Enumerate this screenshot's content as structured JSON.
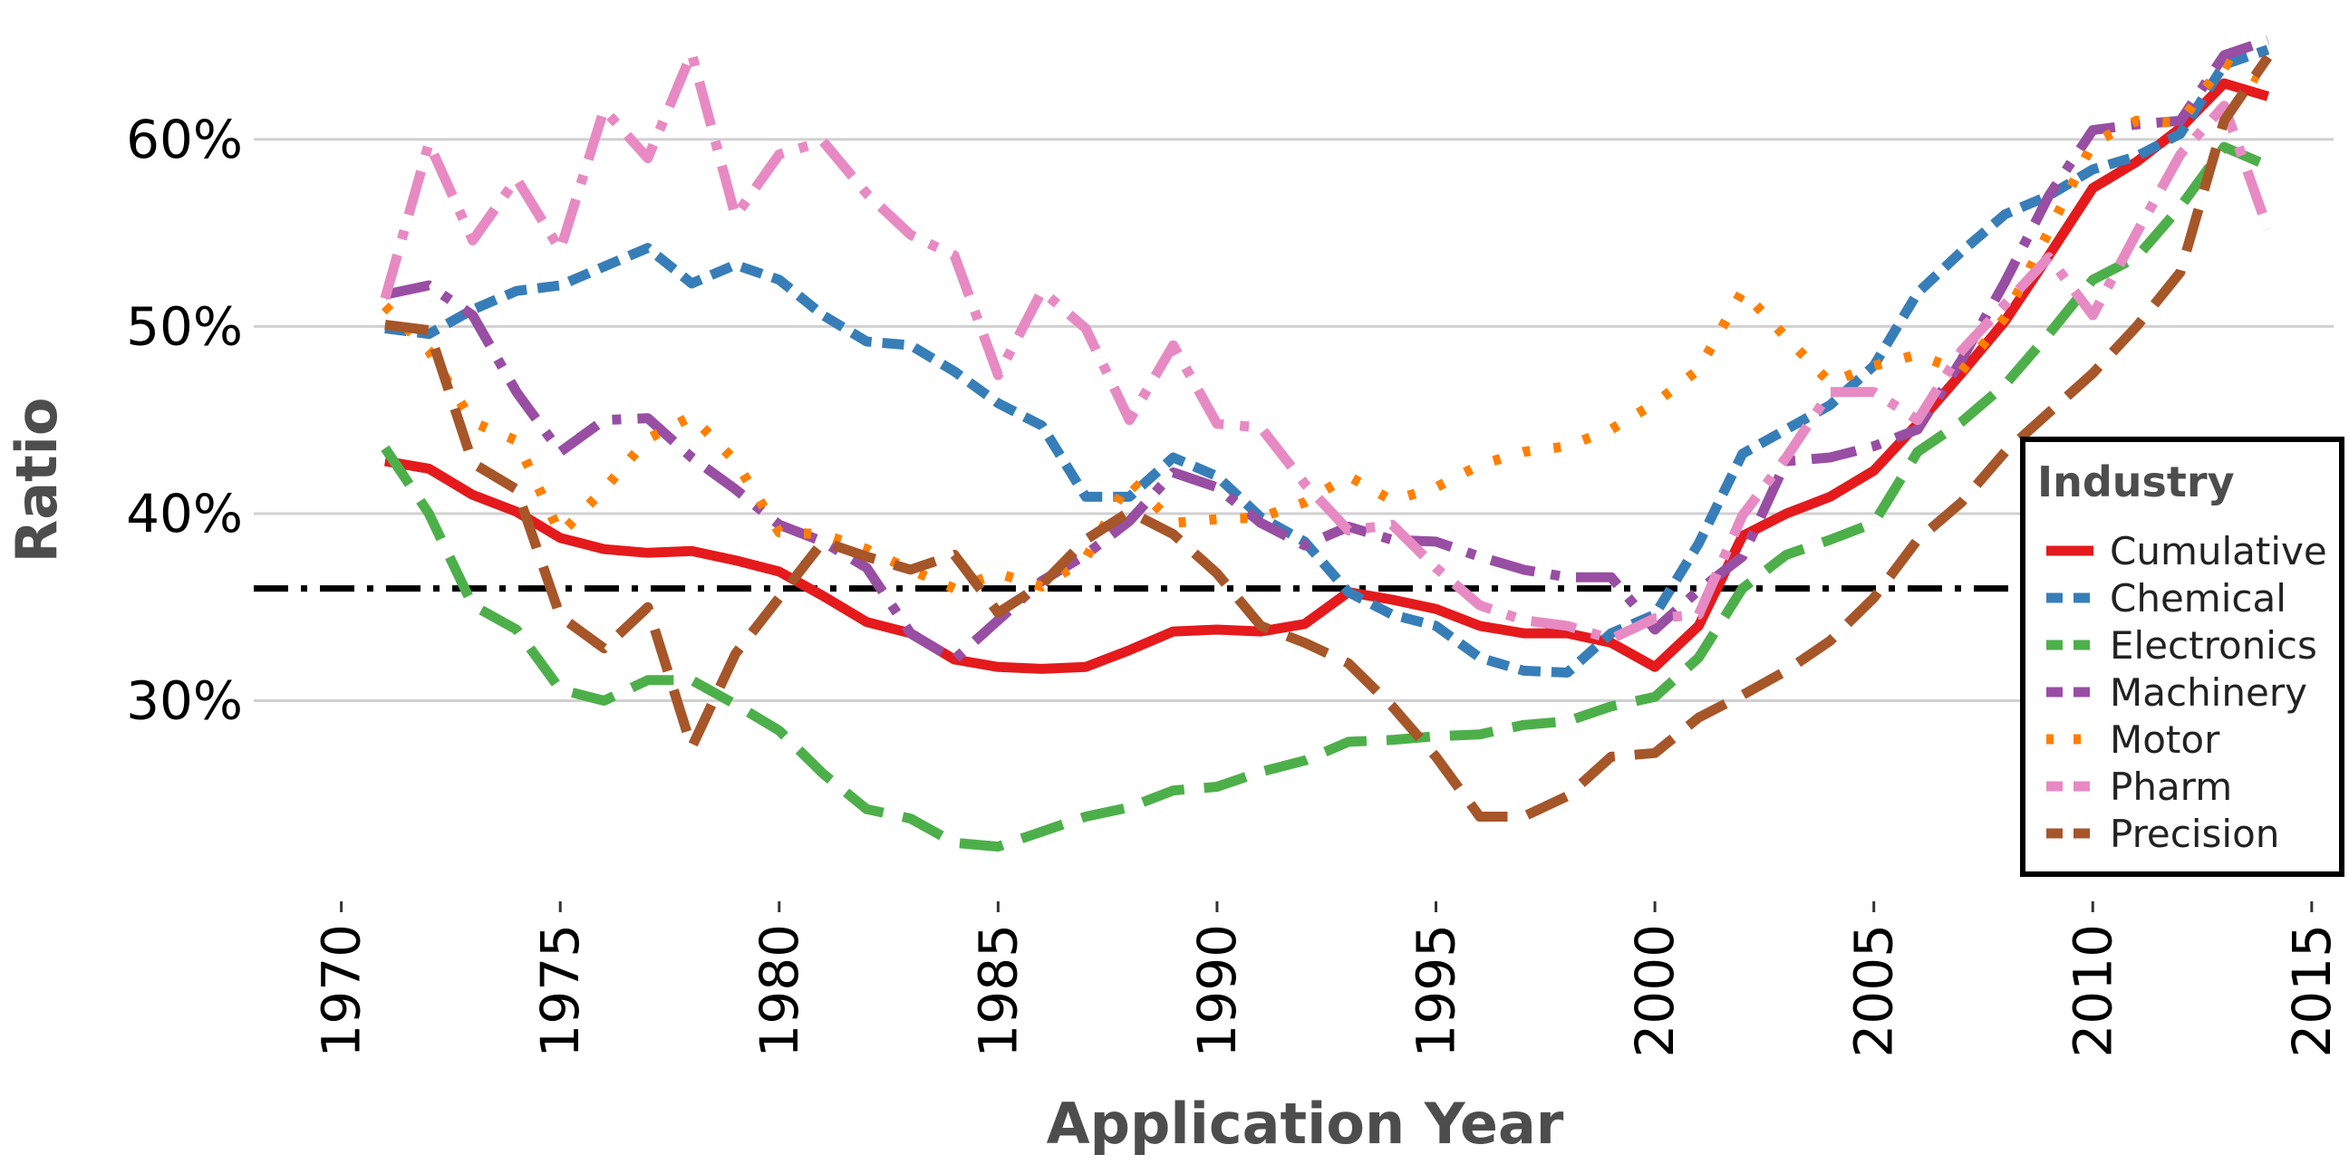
{
  "chart_data": {
    "type": "line",
    "title": "",
    "xlabel": "Application Year",
    "ylabel": "Ratio",
    "xlim": [
      1968,
      2015.5
    ],
    "ylim": [
      20,
      66
    ],
    "grid": "horizontal",
    "legend": {
      "title": "Industry",
      "placement": "right"
    },
    "x_ticks": [
      1970,
      1975,
      1980,
      1985,
      1990,
      1995,
      2000,
      2005,
      2010,
      2015
    ],
    "x_tick_labels": [
      "1970",
      "1975",
      "1980",
      "1985",
      "1990",
      "1995",
      "2000",
      "2005",
      "2010",
      "2015"
    ],
    "y_ticks": [
      30,
      40,
      50,
      60
    ],
    "y_tick_labels": [
      "30%",
      "40%",
      "50%",
      "60%"
    ],
    "reference_line": {
      "y": 36
    },
    "x": [
      1971,
      1972,
      1973,
      1974,
      1975,
      1976,
      1977,
      1978,
      1979,
      1980,
      1981,
      1982,
      1983,
      1984,
      1985,
      1986,
      1987,
      1988,
      1989,
      1990,
      1991,
      1992,
      1993,
      1994,
      1995,
      1996,
      1997,
      1998,
      1999,
      2000,
      2001,
      2002,
      2003,
      2004,
      2005,
      2006,
      2007,
      2008,
      2009,
      2010,
      2011,
      2012,
      2013,
      2014
    ],
    "series": [
      {
        "name": "Cumulative",
        "color": "#e41a1c",
        "dash": "solid",
        "values": [
          42.8,
          42.4,
          41.0,
          40.1,
          38.7,
          38.1,
          37.9,
          38.0,
          37.5,
          36.9,
          35.6,
          34.2,
          33.6,
          32.2,
          31.8,
          31.7,
          31.8,
          32.7,
          33.7,
          33.8,
          33.7,
          34.1,
          35.8,
          35.4,
          34.9,
          34.0,
          33.6,
          33.6,
          33.1,
          31.8,
          34.0,
          38.8,
          40.0,
          40.9,
          42.3,
          44.8,
          47.5,
          50.3,
          53.8,
          57.4,
          58.8,
          60.6,
          63.0,
          62.3
        ]
      },
      {
        "name": "Chemical",
        "color": "#377eb8",
        "dash": "shortdash",
        "values": [
          49.9,
          49.6,
          50.9,
          51.9,
          52.2,
          53.2,
          54.2,
          52.3,
          53.3,
          52.5,
          50.6,
          49.2,
          49.0,
          47.6,
          45.9,
          44.7,
          40.9,
          40.9,
          43.0,
          42.0,
          39.8,
          38.5,
          35.8,
          34.6,
          34.0,
          32.3,
          31.6,
          31.5,
          33.6,
          34.6,
          38.4,
          43.2,
          44.5,
          45.8,
          47.9,
          51.8,
          54.0,
          56.0,
          57.0,
          58.4,
          59.1,
          60.3,
          64.0,
          64.8
        ]
      },
      {
        "name": "Electronics",
        "color": "#4daf4a",
        "dash": "longdash",
        "values": [
          43.5,
          40.0,
          35.1,
          33.8,
          30.6,
          30.0,
          31.1,
          31.1,
          29.8,
          28.4,
          26.1,
          24.2,
          23.7,
          22.4,
          22.2,
          23.0,
          23.8,
          24.3,
          25.2,
          25.4,
          26.2,
          26.8,
          27.8,
          27.9,
          28.1,
          28.2,
          28.7,
          28.9,
          29.7,
          30.2,
          32.3,
          36.0,
          37.8,
          38.6,
          39.5,
          43.3,
          44.9,
          46.9,
          49.6,
          52.5,
          53.7,
          56.4,
          59.6,
          58.6
        ]
      },
      {
        "name": "Machinery",
        "color": "#984ea3",
        "dash": "dashdot",
        "values": [
          51.7,
          52.2,
          50.6,
          46.5,
          43.3,
          45.0,
          45.1,
          43.0,
          41.3,
          39.4,
          38.5,
          37.1,
          33.6,
          32.2,
          34.3,
          36.4,
          37.8,
          39.6,
          42.2,
          41.4,
          39.5,
          38.3,
          39.3,
          38.6,
          38.5,
          37.7,
          37.0,
          36.6,
          36.6,
          33.8,
          35.9,
          37.7,
          42.8,
          43.0,
          43.6,
          44.5,
          48.2,
          52.4,
          57.0,
          60.5,
          60.8,
          61.0,
          64.5,
          65.3
        ]
      },
      {
        "name": "Motor",
        "color": "#ff7f00",
        "dash": "dotted",
        "values": [
          51.1,
          48.7,
          44.9,
          43.9,
          38.9,
          41.3,
          44.0,
          45.2,
          42.8,
          39.0,
          38.9,
          38.1,
          37.0,
          36.0,
          36.8,
          36.1,
          37.6,
          41.8,
          39.5,
          39.7,
          39.8,
          40.6,
          42.0,
          40.7,
          41.4,
          42.6,
          43.3,
          43.6,
          44.5,
          45.9,
          47.7,
          51.9,
          49.4,
          47.0,
          47.9,
          48.5,
          47.6,
          50.5,
          55.1,
          59.8,
          61.0,
          60.9,
          64.1,
          63.0
        ]
      },
      {
        "name": "Pharm",
        "color": "#e78ac3",
        "dash": "dashdot",
        "values": [
          51.5,
          59.8,
          54.6,
          57.9,
          54.1,
          61.6,
          59.0,
          64.6,
          55.9,
          59.2,
          59.9,
          57.1,
          54.9,
          53.8,
          47.4,
          51.9,
          49.9,
          45.0,
          49.0,
          44.8,
          44.6,
          41.6,
          39.1,
          39.4,
          37.1,
          35.1,
          34.3,
          34.0,
          33.3,
          34.4,
          34.6,
          39.9,
          43.0,
          46.5,
          46.5,
          45.0,
          48.7,
          51.2,
          53.7,
          50.6,
          55.0,
          59.2,
          61.8,
          55.2
        ]
      },
      {
        "name": "Precision",
        "color": "#a65628",
        "dash": "longdash",
        "values": [
          50.1,
          49.8,
          42.7,
          41.3,
          34.5,
          32.8,
          35.0,
          27.5,
          32.5,
          35.5,
          38.5,
          37.7,
          37.0,
          37.8,
          34.7,
          36.2,
          38.6,
          40.1,
          38.9,
          36.8,
          34.0,
          33.1,
          32.0,
          29.7,
          27.0,
          23.8,
          23.8,
          24.9,
          27.0,
          27.2,
          29.1,
          30.3,
          31.6,
          33.2,
          35.5,
          38.6,
          40.6,
          43.3,
          45.4,
          47.5,
          50.0,
          52.9,
          61.0,
          64.4
        ]
      }
    ]
  }
}
